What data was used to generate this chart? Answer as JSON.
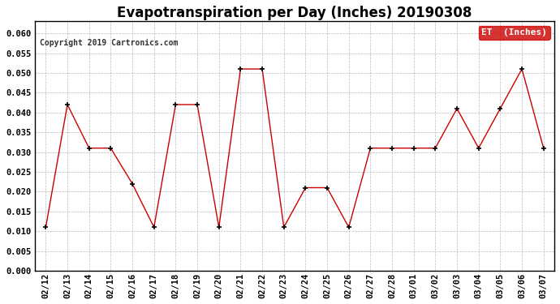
{
  "title": "Evapotranspiration per Day (Inches) 20190308",
  "copyright": "Copyright 2019 Cartronics.com",
  "legend_label": "ET  (Inches)",
  "legend_bg": "#cc0000",
  "legend_text_color": "#ffffff",
  "line_color": "#cc0000",
  "marker_color": "#000000",
  "background_color": "#ffffff",
  "grid_color": "#bbbbbb",
  "ylim": [
    0.0,
    0.063
  ],
  "yticks": [
    0.0,
    0.005,
    0.01,
    0.015,
    0.02,
    0.025,
    0.03,
    0.035,
    0.04,
    0.045,
    0.05,
    0.055,
    0.06
  ],
  "dates": [
    "02/12",
    "02/13",
    "02/14",
    "02/15",
    "02/16",
    "02/17",
    "02/18",
    "02/19",
    "02/20",
    "02/21",
    "02/22",
    "02/23",
    "02/24",
    "02/25",
    "02/26",
    "02/27",
    "02/28",
    "03/01",
    "03/02",
    "03/03",
    "03/04",
    "03/05",
    "03/06",
    "03/07"
  ],
  "values": [
    0.011,
    0.042,
    0.031,
    0.031,
    0.022,
    0.011,
    0.042,
    0.042,
    0.011,
    0.051,
    0.051,
    0.011,
    0.021,
    0.021,
    0.011,
    0.031,
    0.031,
    0.031,
    0.031,
    0.041,
    0.031,
    0.041,
    0.051,
    0.031
  ],
  "title_fontsize": 12,
  "tick_fontsize": 7.5,
  "copyright_fontsize": 7
}
